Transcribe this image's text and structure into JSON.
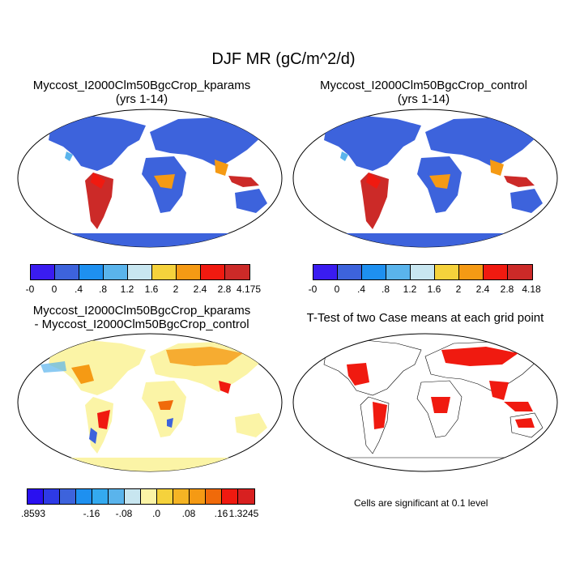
{
  "title": "DJF MR (gC/m^2/d)",
  "panels": [
    {
      "line1": "Myccost_I2000Clm50BgcCrop_kparams",
      "line2": "(yrs 1-14)"
    },
    {
      "line1": "Myccost_I2000Clm50BgcCrop_control",
      "line2": "(yrs 1-14)"
    },
    {
      "line1": "Myccost_I2000Clm50BgcCrop_kparams",
      "line2": "- Myccost_I2000Clm50BgcCrop_control"
    },
    {
      "line1": "T-Test of two Case means at each grid point",
      "line2": ""
    }
  ],
  "colorbars": [
    {
      "labels": [
        "-0",
        "0",
        ".4",
        ".8",
        "1.2",
        "1.6",
        "2",
        "2.4",
        "2.8",
        "4.175"
      ],
      "colors": [
        "#3a1cf0",
        "#3d63dc",
        "#1e90f0",
        "#5ab4ec",
        "#c8e6f0",
        "#f5d23c",
        "#f59a14",
        "#f01a10",
        "#cc2a28"
      ]
    },
    {
      "labels": [
        "-0",
        "0",
        ".4",
        ".8",
        "1.2",
        "1.6",
        "2",
        "2.4",
        "2.8",
        "4.18"
      ],
      "colors": [
        "#3a1cf0",
        "#3d63dc",
        "#1e90f0",
        "#5ab4ec",
        "#c8e6f0",
        "#f5d23c",
        "#f59a14",
        "#f01a10",
        "#cc2a28"
      ]
    },
    {
      "labels": [
        ".8593",
        "-.16",
        "-.08",
        ".0",
        ".08",
        ".16",
        "1.3245"
      ],
      "colors": [
        "#2a10f0",
        "#2e3ae6",
        "#3d63dc",
        "#1e90f0",
        "#34aaf0",
        "#5ab4ec",
        "#c8e6f0",
        "#fbf4a6",
        "#f5d23c",
        "#f5b424",
        "#f59a14",
        "#f06a0a",
        "#f01a10",
        "#d82020"
      ]
    }
  ],
  "note": "Cells are significant at 0.1 level"
}
